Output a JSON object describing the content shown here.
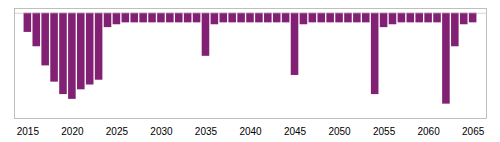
{
  "chart_data": {
    "type": "bar",
    "x": [
      2015,
      2016,
      2017,
      2018,
      2019,
      2020,
      2021,
      2022,
      2023,
      2024,
      2025,
      2026,
      2027,
      2028,
      2029,
      2030,
      2031,
      2032,
      2033,
      2034,
      2035,
      2036,
      2037,
      2038,
      2039,
      2040,
      2041,
      2042,
      2043,
      2044,
      2045,
      2046,
      2047,
      2048,
      2049,
      2050,
      2051,
      2052,
      2053,
      2054,
      2055,
      2056,
      2057,
      2058,
      2059,
      2060,
      2061,
      2062,
      2063,
      2064,
      2065
    ],
    "values": [
      -2.0,
      -3.5,
      -5.5,
      -7.2,
      -8.5,
      -9.0,
      -8.0,
      -7.5,
      -7.0,
      -1.5,
      -1.2,
      -1.0,
      -1.0,
      -1.0,
      -1.0,
      -1.0,
      -1.0,
      -1.0,
      -1.0,
      -1.0,
      -4.5,
      -1.2,
      -1.0,
      -1.0,
      -1.0,
      -1.0,
      -1.0,
      -1.0,
      -1.0,
      -1.0,
      -6.5,
      -1.2,
      -1.0,
      -1.0,
      -1.0,
      -1.0,
      -1.0,
      -1.0,
      -1.0,
      -8.5,
      -1.5,
      -1.2,
      -1.0,
      -1.0,
      -1.0,
      -1.0,
      -1.0,
      -9.5,
      -3.5,
      -1.2,
      -1.0
    ],
    "color": "#822174",
    "xlim": [
      2013.5,
      2066.5
    ],
    "xticks": [
      2015,
      2020,
      2025,
      2030,
      2035,
      2040,
      2045,
      2050,
      2055,
      2060,
      2065
    ],
    "ylim": [
      -11,
      0.5
    ],
    "yticks": [],
    "tick_labels": "x",
    "grid": false
  }
}
